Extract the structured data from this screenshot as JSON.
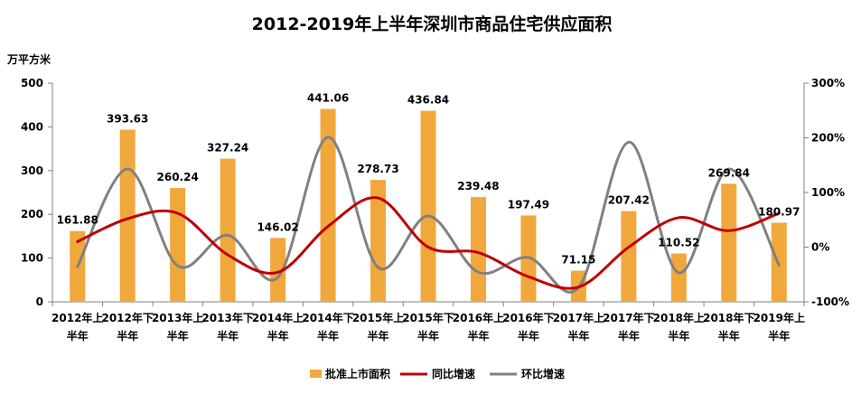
{
  "chart_data": {
    "type": "bar+line",
    "title": "2012-2019年上半年深圳市商品住宅供应面积",
    "y_left_unit": "万平方米",
    "y_left_ticks": [
      "0",
      "100",
      "200",
      "300",
      "400",
      "500"
    ],
    "y_right_ticks": [
      "-100%",
      "0%",
      "100%",
      "200%",
      "300%"
    ],
    "ylim_left": [
      0,
      500
    ],
    "ylim_right": [
      -100,
      300
    ],
    "categories": [
      [
        "2012年上",
        "半年"
      ],
      [
        "2012年下",
        "半年"
      ],
      [
        "2013年上",
        "半年"
      ],
      [
        "2013年下",
        "半年"
      ],
      [
        "2014年上",
        "半年"
      ],
      [
        "2014年下",
        "半年"
      ],
      [
        "2015年上",
        "半年"
      ],
      [
        "2015年下",
        "半年"
      ],
      [
        "2016年上",
        "半年"
      ],
      [
        "2016年下",
        "半年"
      ],
      [
        "2017年上",
        "半年"
      ],
      [
        "2017年下",
        "半年"
      ],
      [
        "2018年上",
        "半年"
      ],
      [
        "2018年下",
        "半年"
      ],
      [
        "2019年上",
        "半年"
      ]
    ],
    "bars": {
      "name": "批准上市面积",
      "color": "#F0A83C",
      "values": [
        161.88,
        393.63,
        260.24,
        327.24,
        146.02,
        441.06,
        278.73,
        436.84,
        239.48,
        197.49,
        71.15,
        207.42,
        110.52,
        269.84,
        180.97
      ],
      "labels": [
        "161.88",
        "393.63",
        "260.24",
        "327.24",
        "146.02",
        "441.06",
        "278.73",
        "436.84",
        "239.48",
        "197.49",
        "71.15",
        "207.42",
        "110.52",
        "269.84",
        "180.97"
      ]
    },
    "lines": [
      {
        "name": "同比增速",
        "color": "#C00000",
        "values": [
          10,
          52,
          62,
          -14,
          -46,
          38,
          90,
          0,
          -10,
          -54,
          -73,
          0,
          54,
          30,
          62
        ]
      },
      {
        "name": "环比增速",
        "color": "#808080",
        "values": [
          -36,
          143,
          -34,
          22,
          -55,
          201,
          -37,
          57,
          -46,
          -19,
          -74,
          192,
          -47,
          143,
          -33
        ]
      }
    ],
    "legend": {
      "position": "bottom"
    },
    "grid": false
  }
}
